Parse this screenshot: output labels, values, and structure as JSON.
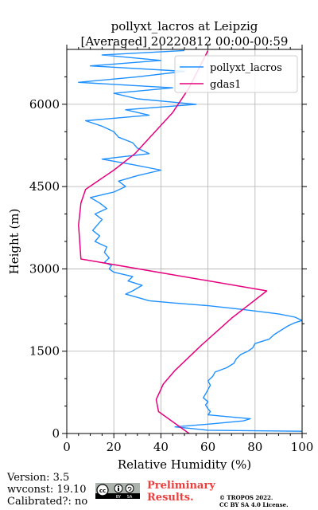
{
  "chart_data": {
    "type": "line",
    "title": "pollyxt_lacros at Leipzig",
    "subtitle": "[Averaged] 20220812 00:00-00:59",
    "xlabel": "Relative Humidity (%)",
    "ylabel": "Height (m)",
    "xlim": [
      0,
      100
    ],
    "ylim": [
      0,
      7000
    ],
    "xticks": [
      "0",
      "20",
      "40",
      "60",
      "80",
      "100"
    ],
    "yticks": [
      "0",
      "1500",
      "3000",
      "4500",
      "6000"
    ],
    "grid": true,
    "legend_position": "top-right",
    "series": [
      {
        "name": "pollyxt_lacros",
        "color": "#1e90ff",
        "points": [
          [
            100,
            40
          ],
          [
            60,
            60
          ],
          [
            46,
            120
          ],
          [
            60,
            170
          ],
          [
            75,
            230
          ],
          [
            78,
            270
          ],
          [
            70,
            300
          ],
          [
            60,
            340
          ],
          [
            61,
            400
          ],
          [
            60,
            450
          ],
          [
            59,
            520
          ],
          [
            60,
            580
          ],
          [
            58,
            650
          ],
          [
            59,
            720
          ],
          [
            60,
            800
          ],
          [
            61,
            880
          ],
          [
            60,
            960
          ],
          [
            62,
            1040
          ],
          [
            63,
            1120
          ],
          [
            68,
            1200
          ],
          [
            71,
            1280
          ],
          [
            72,
            1360
          ],
          [
            74,
            1440
          ],
          [
            77,
            1500
          ],
          [
            79,
            1560
          ],
          [
            80,
            1640
          ],
          [
            86,
            1720
          ],
          [
            88,
            1800
          ],
          [
            91,
            1880
          ],
          [
            94,
            1960
          ],
          [
            97,
            2020
          ],
          [
            100,
            2060
          ],
          [
            97,
            2120
          ],
          [
            90,
            2180
          ],
          [
            75,
            2260
          ],
          [
            60,
            2330
          ],
          [
            45,
            2380
          ],
          [
            35,
            2420
          ],
          [
            30,
            2480
          ],
          [
            25,
            2540
          ],
          [
            28,
            2600
          ],
          [
            32,
            2700
          ],
          [
            26,
            2780
          ],
          [
            28,
            2860
          ],
          [
            20,
            2940
          ],
          [
            18,
            3000
          ],
          [
            19,
            3060
          ],
          [
            16,
            3120
          ],
          [
            18,
            3200
          ],
          [
            16,
            3300
          ],
          [
            17,
            3400
          ],
          [
            12,
            3500
          ],
          [
            14,
            3600
          ],
          [
            11,
            3700
          ],
          [
            13,
            3800
          ],
          [
            15,
            3900
          ],
          [
            12,
            4000
          ],
          [
            17,
            4100
          ],
          [
            14,
            4200
          ],
          [
            10,
            4300
          ],
          [
            20,
            4400
          ],
          [
            25,
            4500
          ],
          [
            22,
            4600
          ],
          [
            30,
            4700
          ],
          [
            40,
            4800
          ],
          [
            28,
            4900
          ],
          [
            15,
            5000
          ],
          [
            35,
            5100
          ],
          [
            30,
            5200
          ],
          [
            28,
            5300
          ],
          [
            22,
            5400
          ],
          [
            20,
            5500
          ],
          [
            15,
            5600
          ],
          [
            8,
            5700
          ],
          [
            35,
            5800
          ],
          [
            25,
            5900
          ],
          [
            55,
            6000
          ],
          [
            30,
            6100
          ],
          [
            20,
            6200
          ],
          [
            45,
            6300
          ],
          [
            5,
            6400
          ],
          [
            30,
            6500
          ],
          [
            50,
            6600
          ],
          [
            10,
            6700
          ],
          [
            40,
            6800
          ],
          [
            15,
            6900
          ],
          [
            50,
            6980
          ]
        ]
      },
      {
        "name": "gdas1",
        "color": "#e6007e",
        "points": [
          [
            52,
            0
          ],
          [
            39,
            400
          ],
          [
            38,
            620
          ],
          [
            41,
            900
          ],
          [
            46,
            1150
          ],
          [
            57,
            1600
          ],
          [
            70,
            2100
          ],
          [
            85,
            2600
          ],
          [
            6,
            3180
          ],
          [
            5,
            3800
          ],
          [
            6,
            4200
          ],
          [
            8,
            4450
          ],
          [
            20,
            4800
          ],
          [
            29,
            5100
          ],
          [
            45,
            5850
          ],
          [
            52,
            6300
          ],
          [
            60,
            6980
          ]
        ]
      }
    ]
  },
  "footer": {
    "version": "Version: 3.5",
    "wvconst": "wvconst:  19.10",
    "calibrated": "Calibrated?: no",
    "preliminary": "Preliminary\nResults.",
    "copyright_line1": "© TROPOS 2022.",
    "copyright_line2": "CC BY SA 4.0 License."
  }
}
